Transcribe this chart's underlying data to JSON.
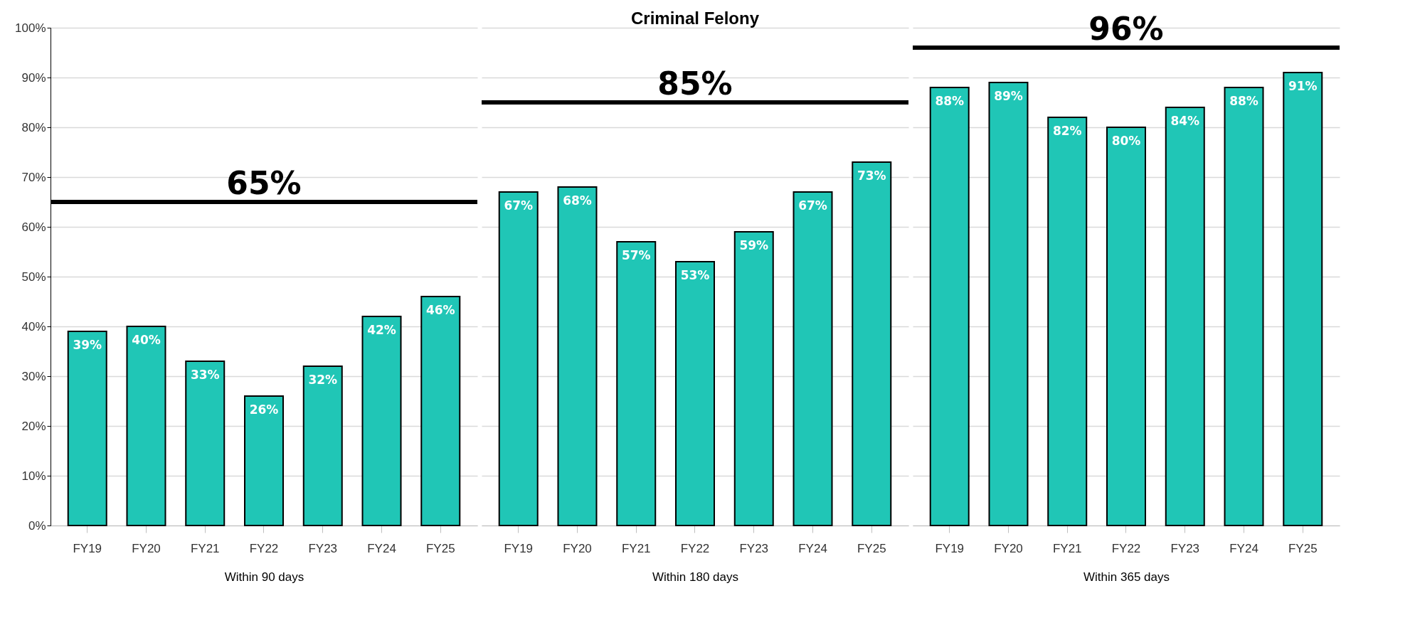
{
  "chart_data": [
    {
      "type": "bar",
      "xlabel": "Within 90 days",
      "categories": [
        "FY19",
        "FY20",
        "FY21",
        "FY22",
        "FY23",
        "FY24",
        "FY25"
      ],
      "values": [
        39,
        40,
        33,
        26,
        32,
        42,
        46
      ],
      "value_labels": [
        "39%",
        "40%",
        "33%",
        "26%",
        "32%",
        "42%",
        "46%"
      ],
      "color": "#20c6b6",
      "ylim": [
        0,
        100
      ],
      "yticks": [
        {
          "value": 0,
          "label": "0%"
        },
        {
          "value": 10,
          "label": "10%"
        },
        {
          "value": 20,
          "label": "20%"
        },
        {
          "value": 30,
          "label": "30%"
        },
        {
          "value": 40,
          "label": "40%"
        },
        {
          "value": 50,
          "label": "50%"
        },
        {
          "value": 60,
          "label": "60%"
        },
        {
          "value": 70,
          "label": "70%"
        },
        {
          "value": 80,
          "label": "80%"
        },
        {
          "value": 90,
          "label": "90%"
        },
        {
          "value": 100,
          "label": "100%"
        }
      ],
      "grid": "y",
      "ref_lines": [
        {
          "axis": "y",
          "value": 65,
          "label": "65%",
          "color": "#000000"
        }
      ]
    },
    {
      "type": "bar",
      "title": "Criminal Felony",
      "xlabel": "Within 180 days",
      "categories": [
        "FY19",
        "FY20",
        "FY21",
        "FY22",
        "FY23",
        "FY24",
        "FY25"
      ],
      "values": [
        67,
        68,
        57,
        53,
        59,
        67,
        73
      ],
      "value_labels": [
        "67%",
        "68%",
        "57%",
        "53%",
        "59%",
        "67%",
        "73%"
      ],
      "color": "#20c6b6",
      "ylim": [
        0,
        100
      ],
      "yticks": [
        0,
        10,
        20,
        30,
        40,
        50,
        60,
        70,
        80,
        90,
        100
      ],
      "grid": "y",
      "tick_labels": "x",
      "ref_lines": [
        {
          "axis": "y",
          "value": 85,
          "label": "85%",
          "color": "#000000"
        }
      ]
    },
    {
      "type": "bar",
      "xlabel": "Within 365 days",
      "categories": [
        "FY19",
        "FY20",
        "FY21",
        "FY22",
        "FY23",
        "FY24",
        "FY25"
      ],
      "values": [
        88,
        89,
        82,
        80,
        84,
        88,
        91
      ],
      "value_labels": [
        "88%",
        "89%",
        "82%",
        "80%",
        "84%",
        "88%",
        "91%"
      ],
      "color": "#20c6b6",
      "ylim": [
        0,
        100
      ],
      "yticks": [
        0,
        10,
        20,
        30,
        40,
        50,
        60,
        70,
        80,
        90,
        100
      ],
      "grid": "y",
      "tick_labels": "x",
      "ref_lines": [
        {
          "axis": "y",
          "value": 96,
          "label": "96%",
          "color": "#000000"
        }
      ]
    }
  ]
}
